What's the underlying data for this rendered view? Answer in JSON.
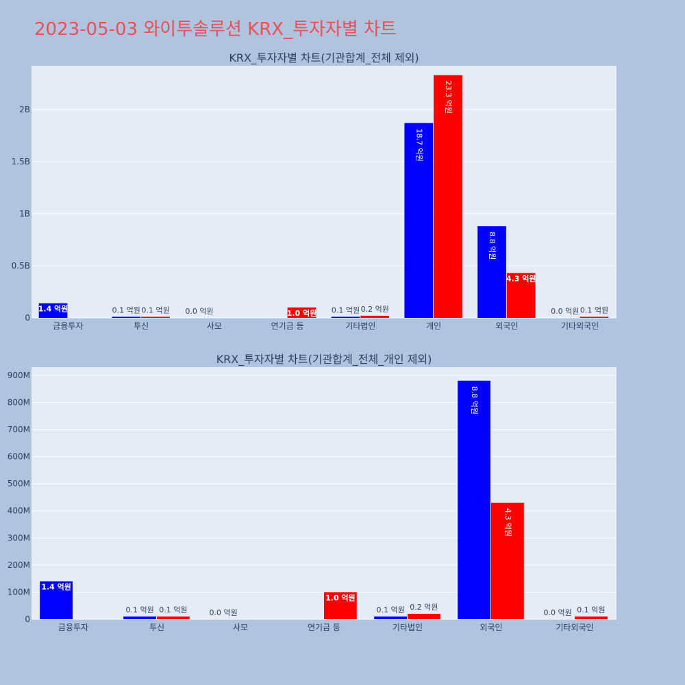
{
  "header": {
    "title": "2023-05-03 와이투솔루션 KRX_투자자별 차트"
  },
  "colors": {
    "buy": "#0000ff",
    "sell": "#ff0000",
    "plot_bg": "#e5ecf6",
    "page_bg": "#b0c4de",
    "title": "#e8505b"
  },
  "chart_data": [
    {
      "type": "bar",
      "title": "KRX_투자자별 차트(기관합계_전체 제외)",
      "categories": [
        "금융투자",
        "투신",
        "사모",
        "연기금 등",
        "기타법인",
        "개인",
        "외국인",
        "기타외국인"
      ],
      "series": [
        {
          "values": [
            140000000,
            10000000,
            0,
            0,
            10000000,
            1870000000,
            880000000,
            0
          ],
          "labels": [
            "1.4 억원",
            "0.1 억원",
            "0.0 억원",
            "",
            "0.1 억원",
            "18.7 억원",
            "8.8 억원",
            "0.0 억원"
          ]
        },
        {
          "values": [
            0,
            10000000,
            0,
            100000000,
            20000000,
            2330000000,
            430000000,
            10000000
          ],
          "labels": [
            "",
            "0.1 억원",
            "",
            "1.0 억원",
            "0.2 억원",
            "23.3 억원",
            "4.3 억원",
            "0.1 억원"
          ]
        }
      ],
      "ylim": [
        0,
        2420000000
      ],
      "yticks": [
        0,
        500000000,
        1000000000,
        1500000000,
        2000000000
      ],
      "ytick_labels": [
        "0",
        "0.5B",
        "1B",
        "1.5B",
        "2B"
      ],
      "grid": true
    },
    {
      "type": "bar",
      "title": "KRX_투자자별 차트(기관합계_전체_개인 제외)",
      "categories": [
        "금융투자",
        "투신",
        "사모",
        "연기금 등",
        "기타법인",
        "외국인",
        "기타외국인"
      ],
      "series": [
        {
          "values": [
            140000000,
            10000000,
            0,
            0,
            10000000,
            880000000,
            0
          ],
          "labels": [
            "1.4 억원",
            "0.1 억원",
            "0.0 억원",
            "",
            "0.1 억원",
            "8.8 억원",
            "0.0 억원"
          ]
        },
        {
          "values": [
            0,
            10000000,
            0,
            100000000,
            20000000,
            430000000,
            10000000
          ],
          "labels": [
            "",
            "0.1 억원",
            "",
            "1.0 억원",
            "0.2 억원",
            "4.3 억원",
            "0.1 억원"
          ]
        }
      ],
      "ylim": [
        0,
        930000000
      ],
      "yticks": [
        0,
        100000000,
        200000000,
        300000000,
        400000000,
        500000000,
        600000000,
        700000000,
        800000000,
        900000000
      ],
      "ytick_labels": [
        "0",
        "100M",
        "200M",
        "300M",
        "400M",
        "500M",
        "600M",
        "700M",
        "800M",
        "900M"
      ],
      "grid": true
    }
  ]
}
